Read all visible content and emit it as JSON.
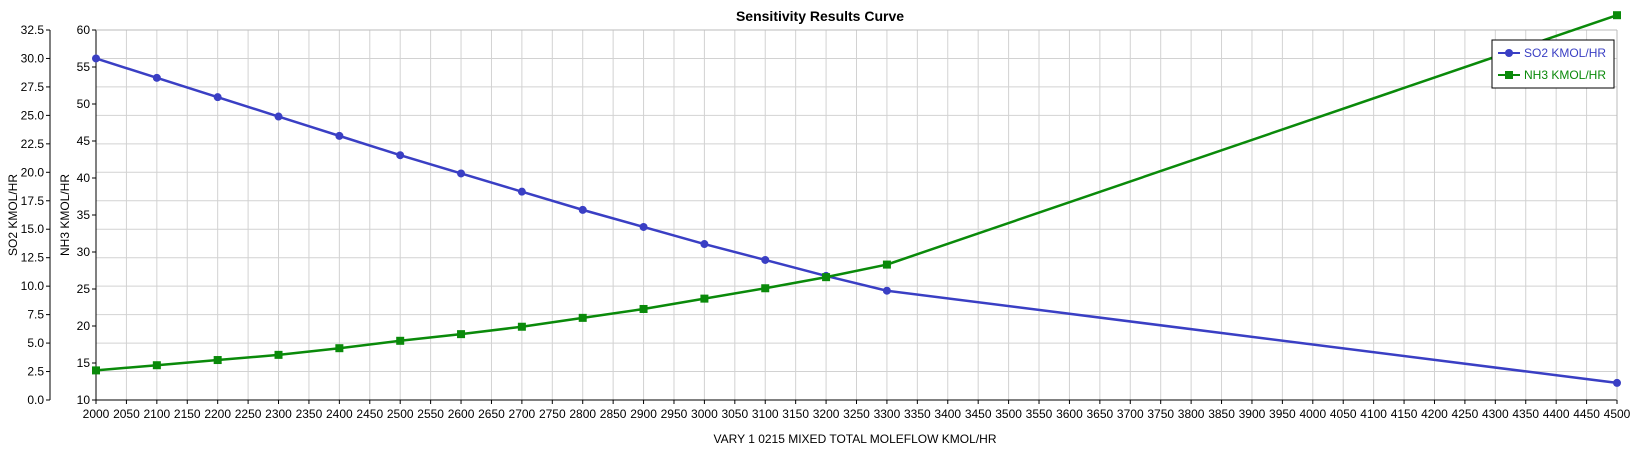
{
  "chart_data": {
    "type": "line",
    "title": "Sensitivity Results Curve",
    "xlabel": "VARY   1 0215 MIXED TOTAL MOLEFLOW KMOL/HR",
    "ylabel_left": "SO2 KMOL/HR",
    "ylabel_right": "NH3 KMOL/HR",
    "xlim": [
      2000,
      4500
    ],
    "x_ticks": [
      "2000",
      "2050",
      "2100",
      "2150",
      "2200",
      "2250",
      "2300",
      "2350",
      "2400",
      "2450",
      "2500",
      "2550",
      "2600",
      "2650",
      "2700",
      "2750",
      "2800",
      "2850",
      "2900",
      "2950",
      "3000",
      "3050",
      "3100",
      "3150",
      "3200",
      "3250",
      "3300",
      "3350",
      "3400",
      "3450",
      "3500",
      "3550",
      "3600",
      "3650",
      "3700",
      "3750",
      "3800",
      "3850",
      "3900",
      "3950",
      "4000",
      "4050",
      "4100",
      "4150",
      "4200",
      "4250",
      "4300",
      "4350",
      "4400",
      "4450",
      "4500"
    ],
    "y1lim": [
      0,
      32.5
    ],
    "y1_ticks": [
      "0.0",
      "2.5",
      "5.0",
      "7.5",
      "10.0",
      "12.5",
      "15.0",
      "17.5",
      "20.0",
      "22.5",
      "25.0",
      "27.5",
      "30.0",
      "32.5"
    ],
    "y2lim": [
      10,
      60
    ],
    "y2_ticks": [
      "10",
      "15",
      "20",
      "25",
      "30",
      "35",
      "40",
      "45",
      "50",
      "55",
      "60"
    ],
    "grid": true,
    "legend_position": "top-right",
    "series": [
      {
        "name": "SO2 KMOL/HR",
        "axis": "left",
        "color": "#3a3fc4",
        "marker": "circle",
        "x": [
          2000,
          2100,
          2200,
          2300,
          2400,
          2500,
          2600,
          2700,
          2800,
          2900,
          3000,
          3100,
          3200,
          3300,
          4500
        ],
        "y": [
          30.0,
          28.3,
          26.6,
          24.9,
          23.2,
          21.5,
          19.9,
          18.3,
          16.7,
          15.2,
          13.7,
          12.3,
          10.9,
          9.6,
          1.5
        ]
      },
      {
        "name": "NH3 KMOL/HR",
        "axis": "right",
        "color": "#0a8a0a",
        "marker": "square",
        "x": [
          2000,
          2100,
          2200,
          2300,
          2400,
          2500,
          2600,
          2700,
          2800,
          2900,
          3000,
          3100,
          3200,
          3300,
          4500
        ],
        "y": [
          14.0,
          14.7,
          15.4,
          16.1,
          17.0,
          18.0,
          18.9,
          19.9,
          21.1,
          22.3,
          23.7,
          25.1,
          26.6,
          28.3,
          62.0
        ]
      }
    ]
  }
}
